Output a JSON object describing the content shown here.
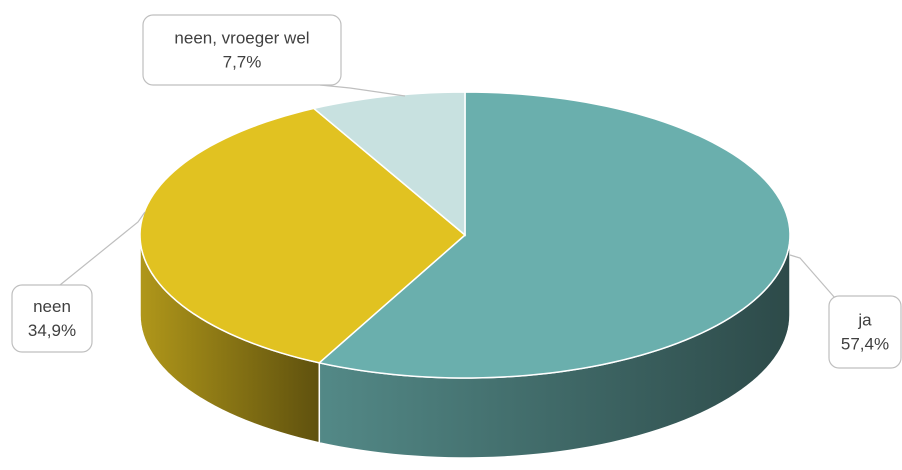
{
  "chart_data": {
    "type": "pie3d",
    "categories": [
      "ja",
      "neen",
      "neen, vroeger wel"
    ],
    "values": [
      57.4,
      34.9,
      7.7
    ],
    "value_labels": [
      "57,4%",
      "34,9%",
      "7,7%"
    ],
    "colors": [
      "#6aafad",
      "#e1c221",
      "#c8e1e0"
    ]
  }
}
